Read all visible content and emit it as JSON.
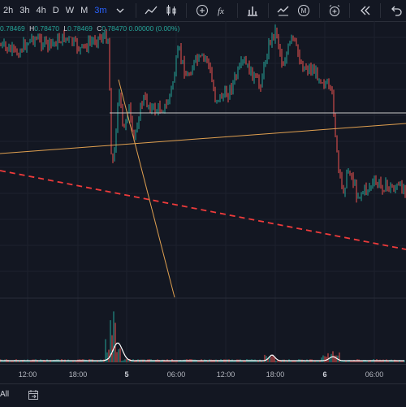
{
  "toolbar": {
    "timeframes": [
      "2h",
      "3h",
      "4h",
      "D",
      "W",
      "M",
      "3m"
    ],
    "active_timeframe": "3m",
    "icons": [
      "chevron-down-icon",
      "line-chart-icon",
      "candles-icon",
      "add-indicator-icon",
      "fx-icon",
      "bars-icon",
      "replay-chart-icon",
      "m-circle-icon",
      "alarm-add-icon",
      "rewind-icon",
      "undo-icon"
    ]
  },
  "legend": {
    "open_value": "0.78469",
    "high_label": "H",
    "high_value": "0.78470",
    "low_label": "L",
    "low_value": "0.78469",
    "close_label": "C",
    "close_value": "0.78470",
    "change": "0.00000 (0.00%)"
  },
  "time_axis": {
    "labels": [
      "12:00",
      "18:00",
      "5",
      "06:00",
      "12:00",
      "18:00",
      "6",
      "06:00"
    ],
    "bold_labels": [
      "5",
      "6"
    ]
  },
  "bottom_bar": {
    "range_label": "All",
    "goto_icon": "calendar-goto-icon"
  },
  "colors": {
    "background": "#131722",
    "up": "#26a69a",
    "down": "#ef5350",
    "trendline": "#e0a050",
    "dashed_line": "#ef3b3b",
    "hline": "#c8c8c8",
    "volume_line": "#ffffff",
    "accent": "#2962ff"
  }
}
